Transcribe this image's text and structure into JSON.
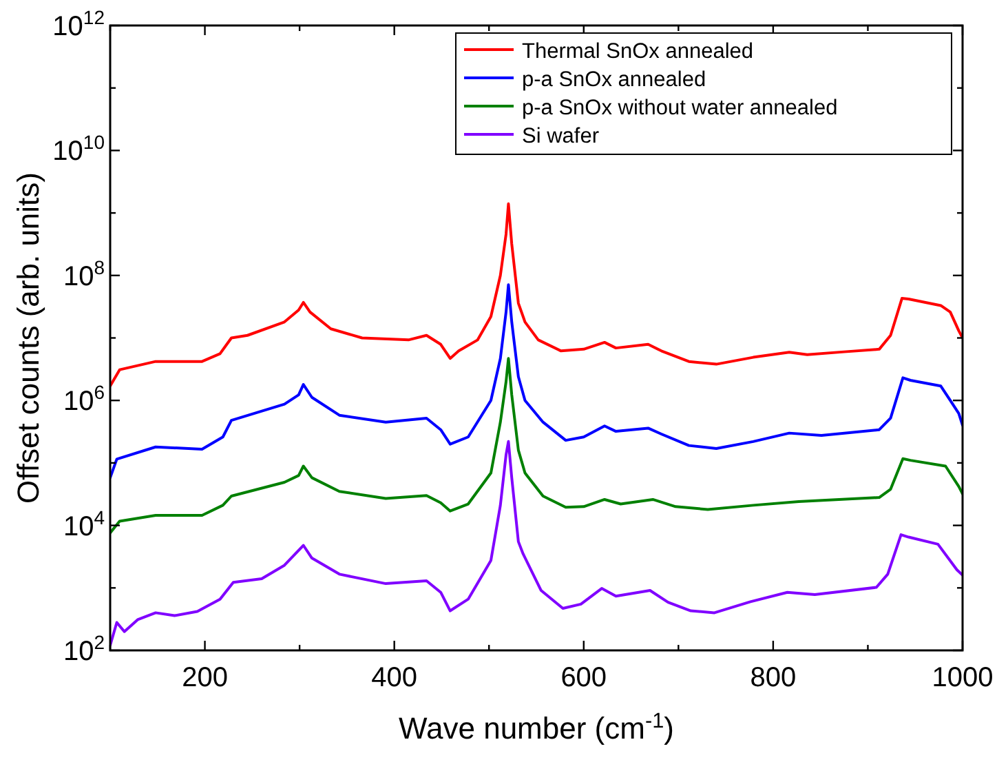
{
  "chart_data": {
    "type": "line",
    "xlabel": "Wave number (cm$^{-1}$)",
    "ylabel": "Offset counts (arb. units)",
    "log": "y",
    "grid": false,
    "legend": "top right",
    "line_style": "solid",
    "marker": "none",
    "xlim": [
      100,
      1000
    ],
    "ylim": [
      100,
      1000000000000.0
    ],
    "xticks": [
      {
        "value": 100,
        "label": null
      },
      200,
      {
        "value": 300,
        "label": null
      },
      400,
      {
        "value": 500,
        "label": null
      },
      600,
      {
        "value": 700,
        "label": null
      },
      800,
      {
        "value": 900,
        "label": null
      },
      1000
    ],
    "yticks": [
      {
        "value": 100.0,
        "label": "10$^{2}$"
      },
      {
        "value": 1000.0,
        "label": null
      },
      {
        "value": 10000.0,
        "label": "10$^{4}$"
      },
      {
        "value": 100000.0,
        "label": null
      },
      {
        "value": 1000000.0,
        "label": "10$^{6}$"
      },
      {
        "value": 10000000.0,
        "label": null
      },
      {
        "value": 100000000.0,
        "label": "10$^{8}$"
      },
      {
        "value": 1000000000.0,
        "label": null
      },
      {
        "value": 10000000000.0,
        "label": "10$^{10}$"
      },
      {
        "value": 100000000000.0,
        "label": null
      },
      {
        "value": 1000000000000.0,
        "label": "10$^{12}$"
      }
    ],
    "series": [
      {
        "name": "Thermal SnOx annealed",
        "color": "#ff0000",
        "x": [
          100,
          110,
          148,
          197,
          216,
          228,
          245,
          284,
          299,
          304,
          311,
          333,
          366,
          415,
          434,
          449,
          459,
          468,
          488,
          502,
          512,
          518,
          520.5,
          524,
          531,
          538,
          552,
          576,
          600,
          622,
          634,
          668,
          682,
          711,
          740,
          779,
          817,
          836,
          875,
          912,
          924,
          936,
          943,
          977,
          987,
          996,
          1000
        ],
        "values": [
          1700000.0,
          3100000.0,
          4200000.0,
          4200000.0,
          5600000.0,
          10000000.0,
          11000000.0,
          18000000.0,
          28000000.0,
          37000000.0,
          26000000.0,
          14000000.0,
          10000000.0,
          9300000.0,
          11000000.0,
          7900000.0,
          4700000.0,
          6200000.0,
          9300000.0,
          22000000.0,
          100000000.0,
          460000000.0,
          1400000000.0,
          320000000.0,
          36000000.0,
          18000000.0,
          9300000.0,
          6200000.0,
          6600000.0,
          8500000.0,
          6900000.0,
          7900000.0,
          6200000.0,
          4200000.0,
          3800000.0,
          4900000.0,
          5900000.0,
          5400000.0,
          6000000.0,
          6600000.0,
          11000000.0,
          43000000.0,
          42000000.0,
          33000000.0,
          26000000.0,
          13000000.0,
          10000000.0
        ]
      },
      {
        "name": "p-a SnOx annealed",
        "color": "#0000ff",
        "x": [
          100,
          107,
          148,
          197,
          219,
          228,
          284,
          299,
          304,
          313,
          342,
          391,
          434,
          449,
          459,
          478,
          502,
          512,
          518,
          520.5,
          524,
          531,
          538,
          557,
          581,
          600,
          622,
          634,
          668,
          682,
          711,
          740,
          779,
          817,
          851,
          912,
          924,
          937,
          945,
          977,
          987,
          996,
          1000
        ],
        "values": [
          58000.0,
          115000.0,
          180000.0,
          166000.0,
          260000.0,
          480000.0,
          870000.0,
          1230000.0,
          1800000.0,
          1120000.0,
          580000.0,
          450000.0,
          520000.0,
          340000.0,
          200000.0,
          260000.0,
          1000000.0,
          4700000.0,
          26000000.0,
          71000000.0,
          18000000.0,
          2400000.0,
          1000000.0,
          450000.0,
          230000.0,
          260000.0,
          390000.0,
          320000.0,
          360000.0,
          290000.0,
          190000.0,
          170000.0,
          220000.0,
          300000.0,
          275000.0,
          340000.0,
          520000.0,
          2300000.0,
          2100000.0,
          1700000.0,
          1000000.0,
          620000.0,
          400000.0
        ]
      },
      {
        "name": "p-a SnOx without water annealed",
        "color": "#008000",
        "x": [
          100,
          110,
          148,
          197,
          219,
          228,
          284,
          299,
          304,
          313,
          342,
          391,
          434,
          449,
          459,
          478,
          502,
          512,
          518,
          520.5,
          524,
          531,
          538,
          557,
          581,
          600,
          622,
          639,
          673,
          697,
          731,
          779,
          827,
          912,
          924,
          937,
          945,
          982,
          996,
          1000
        ],
        "values": [
          7600.0,
          11700.0,
          14500.0,
          14500.0,
          21000.0,
          29500.0,
          49000.0,
          63000.0,
          89000.0,
          58000.0,
          35000.0,
          27000.0,
          30000.0,
          23000.0,
          17000.0,
          22000.0,
          69000.0,
          450000.0,
          2000000.0,
          4700000.0,
          1230000.0,
          160000.0,
          69000.0,
          29500.0,
          19500.0,
          20000.0,
          26000.0,
          22000.0,
          26000.0,
          20000.0,
          18000.0,
          21000.0,
          24000.0,
          28000.0,
          38000.0,
          117000.0,
          110000.0,
          89000.0,
          42000.0,
          32000.0
        ]
      },
      {
        "name": "Si wafer",
        "color": "#8000ff",
        "x": [
          100,
          107,
          115,
          129,
          148,
          168,
          192,
          216,
          230,
          260,
          284,
          304,
          313,
          342,
          391,
          434,
          449,
          459,
          478,
          502,
          512,
          518,
          520.5,
          524,
          531,
          536,
          555,
          578,
          597,
          619,
          634,
          670,
          689,
          713,
          738,
          776,
          815,
          844,
          909,
          921,
          935,
          943,
          974,
          994,
          1000
        ],
        "values": [
          120,
          280,
          200,
          310,
          400,
          360,
          420,
          660,
          1230,
          1400,
          2300,
          4800,
          3000,
          1660,
          1170,
          1300,
          850,
          430,
          660,
          2750,
          21000.0,
          135000.0,
          220000.0,
          58000.0,
          5500,
          3500,
          910,
          470,
          550,
          980,
          740,
          910,
          590,
          430,
          400,
          600,
          850,
          780,
          1020,
          1660,
          7100,
          6500,
          5000,
          1950,
          1600
        ]
      }
    ]
  }
}
